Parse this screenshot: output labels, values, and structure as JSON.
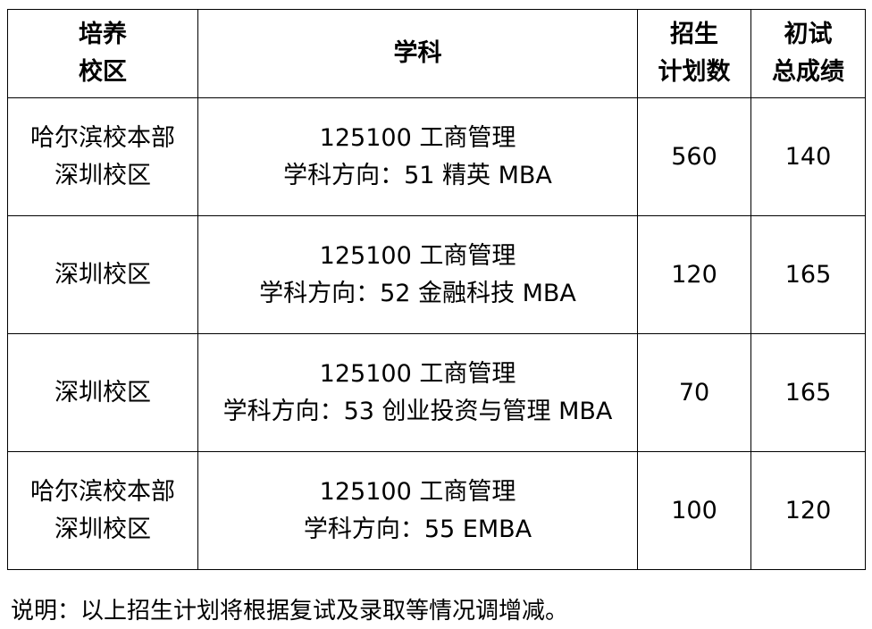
{
  "headers": [
    [
      "培养",
      "校区"
    ],
    [
      "学科"
    ],
    [
      "招生",
      "计划数"
    ],
    [
      "初试",
      "总成绩"
    ]
  ],
  "rows": [
    {
      "campus": [
        "哈尔滨校本部",
        "深圳校区"
      ],
      "subject": [
        "125100  工商管理",
        "学科方向：51  精英 MBA"
      ],
      "plan": "560",
      "score": "140"
    },
    {
      "campus": [
        "深圳校区"
      ],
      "subject": [
        "125100  工商管理",
        "学科方向：52  金融科技 MBA"
      ],
      "plan": "120",
      "score": "165"
    },
    {
      "campus": [
        "深圳校区"
      ],
      "subject": [
        "125100  工商管理",
        "学科方向：53  创业投资与管理 MBA"
      ],
      "plan": "70",
      "score": "165"
    },
    {
      "campus": [
        "哈尔滨校本部",
        "深圳校区"
      ],
      "subject": [
        "125100  工商管理",
        "学科方向：55 EMBA"
      ],
      "plan": "100",
      "score": "120"
    }
  ],
  "note": "说明：以上招生计划将根据复试及录取等情况调增减。"
}
